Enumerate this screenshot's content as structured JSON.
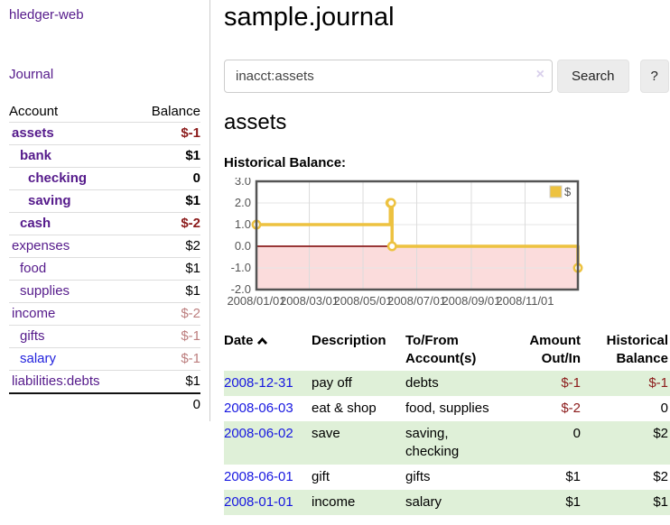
{
  "app": {
    "title": "hledger-web"
  },
  "sidebar": {
    "journal_label": "Journal",
    "account_header": "Account",
    "balance_header": "Balance",
    "accounts": [
      {
        "name": "assets",
        "balance": "$-1",
        "indent": 1,
        "bold": true
      },
      {
        "name": "bank",
        "balance": "$1",
        "indent": 2,
        "bold": true
      },
      {
        "name": "checking",
        "balance": "0",
        "indent": 3,
        "bold": true
      },
      {
        "name": "saving",
        "balance": "$1",
        "indent": 3,
        "bold": true
      },
      {
        "name": "cash",
        "balance": "$-2",
        "indent": 2,
        "bold": true
      },
      {
        "name": "expenses",
        "balance": "$2",
        "indent": 1,
        "bold": false
      },
      {
        "name": "food",
        "balance": "$1",
        "indent": 2,
        "bold": false
      },
      {
        "name": "supplies",
        "balance": "$1",
        "indent": 2,
        "bold": false
      },
      {
        "name": "income",
        "balance": "$-2",
        "indent": 1,
        "bold": false
      },
      {
        "name": "gifts",
        "balance": "$-1",
        "indent": 2,
        "bold": false
      },
      {
        "name": "salary",
        "balance": "$-1",
        "indent": 2,
        "bold": false,
        "blue": true
      },
      {
        "name": "liabilities:debts",
        "balance": "$1",
        "indent": 1,
        "bold": false
      }
    ],
    "total": "0"
  },
  "main": {
    "title": "sample.journal",
    "search": {
      "value": "inacct:assets",
      "clear_icon": "×",
      "button_label": "Search",
      "help_label": "?"
    },
    "account_heading": "assets",
    "chart_label": "Historical Balance:"
  },
  "chart_data": {
    "type": "line",
    "step": true,
    "title": "Historical Balance:",
    "x_range": [
      "2008-01-01",
      "2008-12-31"
    ],
    "ylim": [
      -2,
      3
    ],
    "x_ticks": [
      "2008/01/01",
      "2008/03/01",
      "2008/05/01",
      "2008/07/01",
      "2008/09/01",
      "2008/11/01"
    ],
    "y_ticks": [
      "3.0",
      "2.0",
      "1.0",
      "0.0",
      "-1.0",
      "-2.0"
    ],
    "legend_position": "top-right",
    "series": [
      {
        "name": "$",
        "color": "#EDC240",
        "points": [
          [
            "2008-01-01",
            1
          ],
          [
            "2008-06-01",
            2
          ],
          [
            "2008-06-02",
            2
          ],
          [
            "2008-06-03",
            0
          ],
          [
            "2008-12-31",
            -1
          ]
        ]
      }
    ],
    "grid_color": "#e6e6e6",
    "border_color": "#545454",
    "negative_region_color": "#fbdcdc",
    "zero_line_color": "#8b1f1f"
  },
  "transactions": {
    "columns": [
      "Date",
      "Description",
      "To/From Account(s)",
      "Amount Out/In",
      "Historical Balance"
    ],
    "rows": [
      {
        "date": "2008-12-31",
        "description": "pay off",
        "accounts": "debts",
        "amount": "$-1",
        "balance": "$-1"
      },
      {
        "date": "2008-06-03",
        "description": "eat & shop",
        "accounts": "food, supplies",
        "amount": "$-2",
        "balance": "0"
      },
      {
        "date": "2008-06-02",
        "description": "save",
        "accounts": "saving, checking",
        "amount": "0",
        "balance": "$2"
      },
      {
        "date": "2008-06-01",
        "description": "gift",
        "accounts": "gifts",
        "amount": "$1",
        "balance": "$2"
      },
      {
        "date": "2008-01-01",
        "description": "income",
        "accounts": "salary",
        "amount": "$1",
        "balance": "$1"
      }
    ]
  },
  "colors": {
    "link_purple": "#551a8b",
    "link_blue": "#1717e0",
    "negative_dark": "#8b1a1a",
    "negative_light": "#bc7e7e",
    "row_stripe_green": "#dff0d8",
    "series_gold": "#EDC240"
  }
}
